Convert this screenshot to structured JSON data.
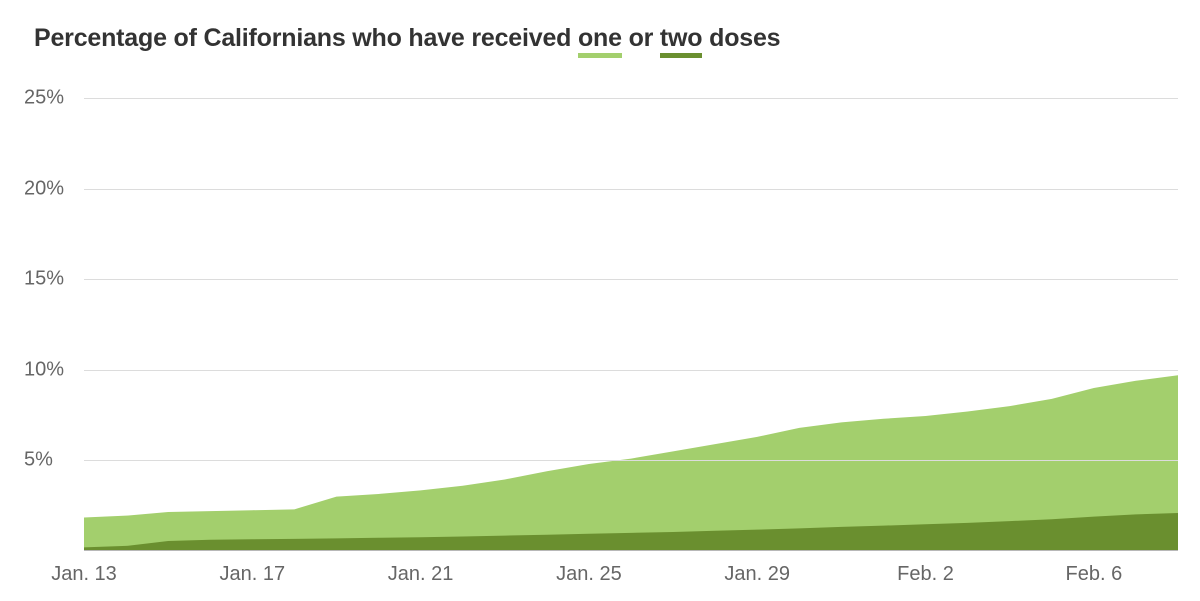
{
  "chart": {
    "type": "area",
    "title_parts": {
      "prefix": "Percentage of Californians who have received ",
      "one": "one",
      "mid": " or ",
      "two": "two",
      "suffix": " doses"
    },
    "title_fontsize": 25,
    "title_color": "#333333",
    "background_color": "#ffffff",
    "grid_color": "#dcdcdc",
    "baseline_color": "#b8b8b8",
    "axis_label_color": "#666666",
    "axis_label_fontsize": 20,
    "ylim": [
      0,
      26.5
    ],
    "yticks": [
      {
        "value": 5,
        "label": "5%"
      },
      {
        "value": 10,
        "label": "10%"
      },
      {
        "value": 15,
        "label": "15%"
      },
      {
        "value": 20,
        "label": "20%"
      },
      {
        "value": 25,
        "label": "25%"
      }
    ],
    "x_count": 27,
    "xticks": [
      {
        "index": 0,
        "label": "Jan. 13"
      },
      {
        "index": 4,
        "label": "Jan. 17"
      },
      {
        "index": 8,
        "label": "Jan. 21"
      },
      {
        "index": 12,
        "label": "Jan. 25"
      },
      {
        "index": 16,
        "label": "Jan. 29"
      },
      {
        "index": 20,
        "label": "Feb. 2"
      },
      {
        "index": 24,
        "label": "Feb. 6"
      }
    ],
    "series": {
      "one": {
        "color": "#a3cf6d",
        "underline_color": "#a3cf6d",
        "values": [
          1.85,
          1.95,
          2.15,
          2.2,
          2.25,
          2.3,
          3.0,
          3.15,
          3.35,
          3.6,
          3.95,
          4.4,
          4.8,
          5.1,
          5.5,
          5.9,
          6.3,
          6.8,
          7.1,
          7.3,
          7.45,
          7.7,
          8.0,
          8.4,
          9.0,
          9.4,
          9.7
        ]
      },
      "two": {
        "color": "#6a8f2f",
        "underline_color": "#6a8f2f",
        "values": [
          0.2,
          0.28,
          0.55,
          0.62,
          0.65,
          0.67,
          0.7,
          0.73,
          0.76,
          0.8,
          0.85,
          0.9,
          0.95,
          1.0,
          1.05,
          1.12,
          1.18,
          1.25,
          1.33,
          1.4,
          1.48,
          1.55,
          1.65,
          1.75,
          1.9,
          2.02,
          2.1
        ]
      }
    }
  }
}
